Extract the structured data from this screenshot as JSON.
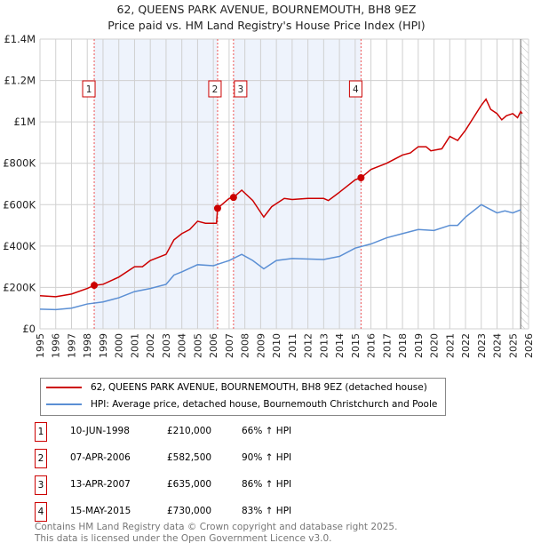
{
  "chart_data": {
    "type": "line",
    "title": "62, QUEENS PARK AVENUE, BOURNEMOUTH, BH8 9EZ",
    "subtitle": "Price paid vs. HM Land Registry's House Price Index (HPI)",
    "xlim": [
      1995,
      2026
    ],
    "ylim": [
      0,
      1400000
    ],
    "x_ticks": [
      "1995",
      "1996",
      "1997",
      "1998",
      "1999",
      "2000",
      "2001",
      "2002",
      "2003",
      "2004",
      "2005",
      "2006",
      "2007",
      "2008",
      "2009",
      "2010",
      "2011",
      "2012",
      "2013",
      "2014",
      "2015",
      "2016",
      "2017",
      "2018",
      "2019",
      "2020",
      "2021",
      "2022",
      "2023",
      "2024",
      "2025",
      "2026"
    ],
    "y_ticks": [
      {
        "v": 0,
        "label": "£0"
      },
      {
        "v": 200000,
        "label": "£200K"
      },
      {
        "v": 400000,
        "label": "£400K"
      },
      {
        "v": 600000,
        "label": "£600K"
      },
      {
        "v": 800000,
        "label": "£800K"
      },
      {
        "v": 1000000,
        "label": "£1M"
      },
      {
        "v": 1200000,
        "label": "£1.2M"
      },
      {
        "v": 1400000,
        "label": "£1.4M"
      }
    ],
    "grid": true,
    "shaded_ranges": [
      [
        1998.44,
        2006.27
      ],
      [
        2007.28,
        2015.37
      ]
    ],
    "future_hatch_from": 2025.5,
    "series": [
      {
        "name": "62, QUEENS PARK AVENUE, BOURNEMOUTH, BH8 9EZ (detached house)",
        "color": "#cc0000",
        "points": [
          [
            1995,
            160000
          ],
          [
            1996,
            155000
          ],
          [
            1997,
            168000
          ],
          [
            1998,
            195000
          ],
          [
            1998.44,
            210000
          ],
          [
            1999,
            215000
          ],
          [
            2000,
            250000
          ],
          [
            2001,
            300000
          ],
          [
            2001.5,
            300000
          ],
          [
            2002,
            330000
          ],
          [
            2003,
            360000
          ],
          [
            2003.5,
            430000
          ],
          [
            2004,
            460000
          ],
          [
            2004.5,
            480000
          ],
          [
            2005,
            520000
          ],
          [
            2005.5,
            510000
          ],
          [
            2006.2,
            510000
          ],
          [
            2006.27,
            582500
          ],
          [
            2007,
            630000
          ],
          [
            2007.28,
            635000
          ],
          [
            2007.8,
            670000
          ],
          [
            2008.5,
            620000
          ],
          [
            2009.2,
            540000
          ],
          [
            2009.7,
            590000
          ],
          [
            2010.5,
            630000
          ],
          [
            2011,
            625000
          ],
          [
            2012,
            630000
          ],
          [
            2013,
            630000
          ],
          [
            2013.3,
            620000
          ],
          [
            2014,
            660000
          ],
          [
            2015,
            720000
          ],
          [
            2015.37,
            730000
          ],
          [
            2016,
            770000
          ],
          [
            2017,
            800000
          ],
          [
            2017.5,
            820000
          ],
          [
            2018,
            840000
          ],
          [
            2018.5,
            850000
          ],
          [
            2019,
            880000
          ],
          [
            2019.5,
            880000
          ],
          [
            2019.8,
            860000
          ],
          [
            2020.5,
            870000
          ],
          [
            2021,
            930000
          ],
          [
            2021.5,
            910000
          ],
          [
            2022,
            960000
          ],
          [
            2022.5,
            1020000
          ],
          [
            2023,
            1080000
          ],
          [
            2023.3,
            1110000
          ],
          [
            2023.6,
            1060000
          ],
          [
            2024,
            1040000
          ],
          [
            2024.3,
            1010000
          ],
          [
            2024.6,
            1030000
          ],
          [
            2025,
            1040000
          ],
          [
            2025.3,
            1020000
          ],
          [
            2025.5,
            1050000
          ],
          [
            2025.6,
            1040000
          ]
        ]
      },
      {
        "name": "HPI: Average price, detached house, Bournemouth Christchurch and Poole",
        "color": "#5b8fd4",
        "points": [
          [
            1995,
            95000
          ],
          [
            1996,
            93000
          ],
          [
            1997,
            100000
          ],
          [
            1998,
            120000
          ],
          [
            1999,
            130000
          ],
          [
            2000,
            150000
          ],
          [
            2001,
            180000
          ],
          [
            2002,
            195000
          ],
          [
            2003,
            215000
          ],
          [
            2003.5,
            260000
          ],
          [
            2004,
            275000
          ],
          [
            2005,
            310000
          ],
          [
            2006,
            305000
          ],
          [
            2007,
            330000
          ],
          [
            2007.8,
            360000
          ],
          [
            2008.5,
            330000
          ],
          [
            2009.2,
            290000
          ],
          [
            2010,
            330000
          ],
          [
            2011,
            340000
          ],
          [
            2013,
            335000
          ],
          [
            2014,
            350000
          ],
          [
            2015,
            390000
          ],
          [
            2016,
            410000
          ],
          [
            2017,
            440000
          ],
          [
            2018,
            460000
          ],
          [
            2019,
            480000
          ],
          [
            2020,
            475000
          ],
          [
            2021,
            500000
          ],
          [
            2021.5,
            500000
          ],
          [
            2022,
            540000
          ],
          [
            2023,
            600000
          ],
          [
            2023.5,
            580000
          ],
          [
            2024,
            560000
          ],
          [
            2024.5,
            570000
          ],
          [
            2025,
            560000
          ],
          [
            2025.5,
            575000
          ]
        ]
      }
    ],
    "sales": [
      {
        "n": "1",
        "x": 1998.44,
        "date": "10-JUN-1998",
        "price": 210000,
        "price_label": "£210,000",
        "hpi": "66% ↑ HPI"
      },
      {
        "n": "2",
        "x": 2006.27,
        "date": "07-APR-2006",
        "price": 582500,
        "price_label": "£582,500",
        "hpi": "90% ↑ HPI"
      },
      {
        "n": "3",
        "x": 2007.28,
        "date": "13-APR-2007",
        "price": 635000,
        "price_label": "£635,000",
        "hpi": "86% ↑ HPI"
      },
      {
        "n": "4",
        "x": 2015.37,
        "date": "15-MAY-2015",
        "price": 730000,
        "price_label": "£730,000",
        "hpi": "83% ↑ HPI"
      }
    ]
  },
  "footer": {
    "line1": "Contains HM Land Registry data © Crown copyright and database right 2025.",
    "line2": "This data is licensed under the Open Government Licence v3.0."
  }
}
